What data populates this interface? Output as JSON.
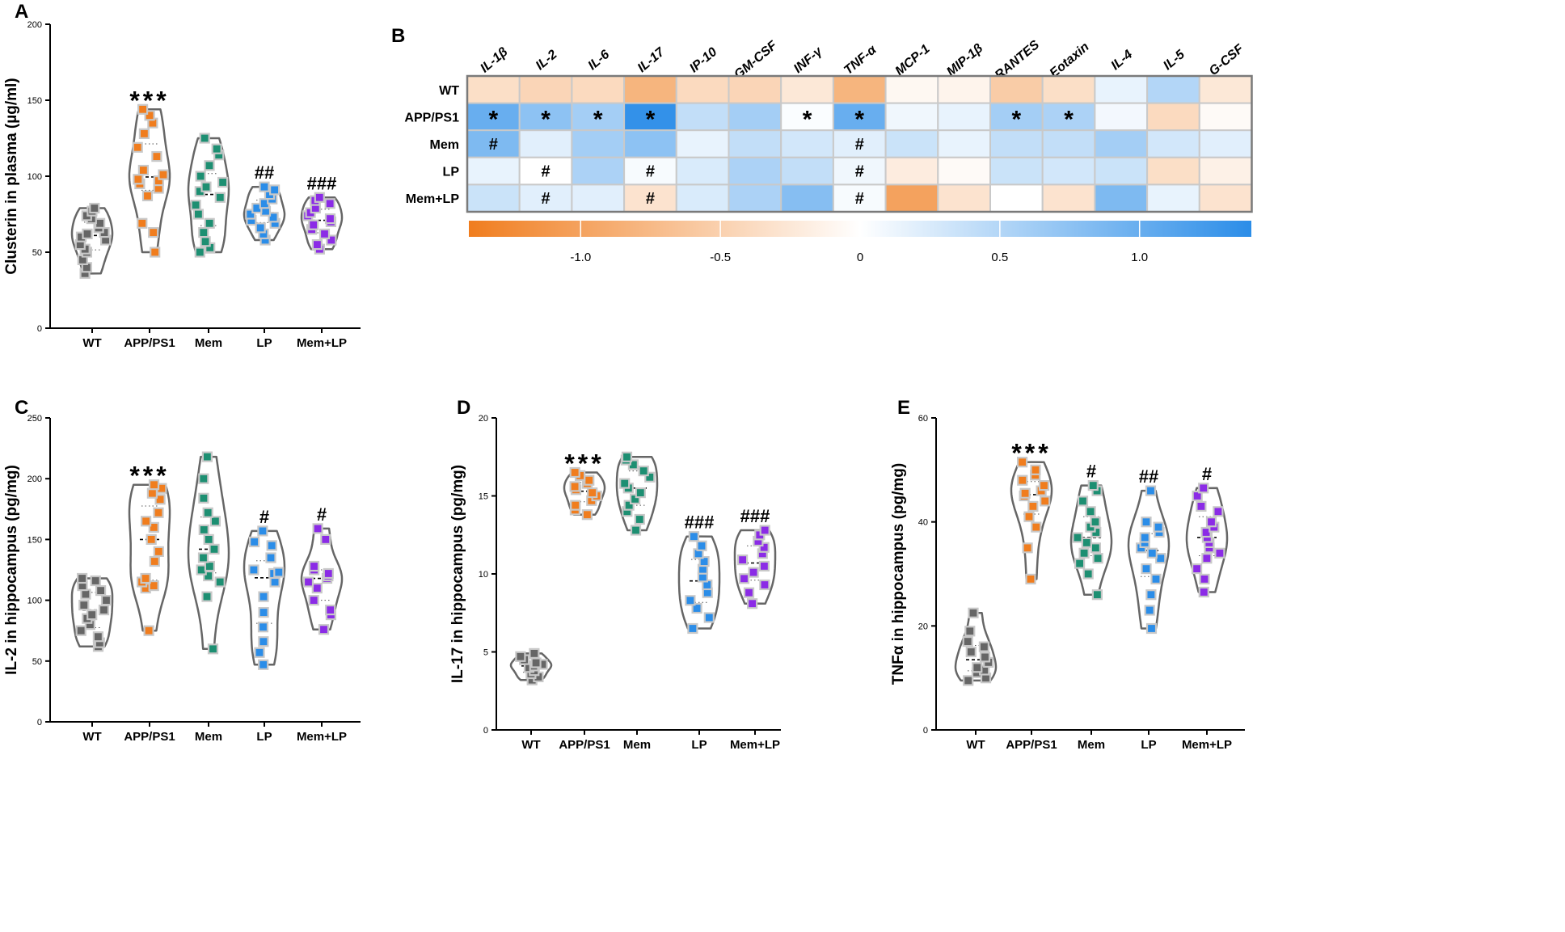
{
  "chart_data": [
    {
      "panel": "A",
      "type": "scatter",
      "ylabel": "Clusterin in plasma (µg/ml)",
      "ylim": [
        0,
        200
      ],
      "yticks": [
        0,
        50,
        100,
        150,
        200
      ],
      "categories": [
        "WT",
        "APP/PS1",
        "Mem",
        "LP",
        "Mem+LP"
      ],
      "annotations": [
        "",
        "***",
        "",
        "##",
        "###"
      ],
      "series": [
        {
          "category": "WT",
          "color": "#666666",
          "values": [
            36,
            40,
            45,
            50,
            52,
            55,
            58,
            60,
            62,
            63,
            66,
            69,
            72,
            74,
            77,
            79
          ]
        },
        {
          "category": "APP/PS1",
          "color": "#f07d1e",
          "values": [
            50,
            63,
            69,
            87,
            92,
            95,
            97,
            98,
            101,
            104,
            113,
            119,
            128,
            135,
            140,
            144
          ]
        },
        {
          "category": "Mem",
          "color": "#1d8f72",
          "values": [
            50,
            53,
            57,
            63,
            69,
            75,
            81,
            86,
            90,
            93,
            96,
            100,
            107,
            114,
            118,
            125
          ]
        },
        {
          "category": "LP",
          "color": "#2b8de8",
          "values": [
            58,
            62,
            66,
            69,
            71,
            73,
            75,
            77,
            79,
            82,
            85,
            88,
            91,
            93
          ]
        },
        {
          "category": "Mem+LP",
          "color": "#8b2be6",
          "values": [
            52,
            55,
            58,
            62,
            65,
            68,
            70,
            72,
            74,
            76,
            79,
            82,
            84,
            86
          ]
        }
      ]
    },
    {
      "panel": "B",
      "type": "heatmap",
      "columns": [
        "IL-1β",
        "IL-2",
        "IL-6",
        "IL-17",
        "IP-10",
        "GM-CSF",
        "INF-γ",
        "TNF-α",
        "MCP-1",
        "MIP-1β",
        "RANTES",
        "Eotaxin",
        "IL-4",
        "IL-5",
        "G-CSF"
      ],
      "rows": [
        "WT",
        "APP/PS1",
        "Mem",
        "LP",
        "Mem+LP"
      ],
      "values": [
        [
          -0.35,
          -0.45,
          -0.4,
          -0.8,
          -0.4,
          -0.45,
          -0.25,
          -0.8,
          -0.08,
          -0.12,
          -0.55,
          -0.35,
          0.15,
          0.5,
          -0.25
        ],
        [
          1.0,
          0.75,
          0.6,
          1.35,
          0.4,
          0.6,
          0.03,
          1.0,
          0.1,
          0.15,
          0.6,
          0.55,
          0.08,
          -0.4,
          -0.05
        ],
        [
          0.85,
          0.2,
          0.6,
          0.75,
          0.15,
          0.4,
          0.3,
          0.2,
          0.35,
          0.15,
          0.4,
          0.4,
          0.6,
          0.3,
          0.2
        ],
        [
          0.15,
          0.0,
          0.55,
          0.05,
          0.25,
          0.55,
          0.4,
          0.1,
          -0.2,
          -0.05,
          0.35,
          0.3,
          0.35,
          -0.35,
          -0.15
        ],
        [
          0.35,
          0.2,
          0.2,
          -0.3,
          0.25,
          0.55,
          0.8,
          0.05,
          -1.0,
          -0.3,
          0.0,
          -0.3,
          0.85,
          0.15,
          -0.3
        ]
      ],
      "markers": [
        [
          "",
          "",
          "",
          "",
          "",
          "",
          "",
          "",
          "",
          "",
          "",
          "",
          "",
          "",
          ""
        ],
        [
          "*",
          "*",
          "*",
          "*",
          "",
          "",
          "*",
          "*",
          "",
          "",
          "*",
          "*",
          "",
          "",
          ""
        ],
        [
          "#",
          "",
          "",
          "",
          "",
          "",
          "",
          "#",
          "",
          "",
          "",
          "",
          "",
          "",
          ""
        ],
        [
          "",
          "#",
          "",
          "#",
          "",
          "",
          "",
          "#",
          "",
          "",
          "",
          "",
          "",
          "",
          ""
        ],
        [
          "",
          "#",
          "",
          "#",
          "",
          "",
          "",
          "#",
          "",
          "",
          "",
          "",
          "",
          "",
          ""
        ]
      ],
      "colorbar": {
        "min": -1.4,
        "max": 1.4,
        "ticks": [
          -1.0,
          -0.5,
          0,
          0.5,
          1.0
        ],
        "tick_labels": [
          "-1.0",
          "-0.5",
          "0",
          "0.5",
          "1.0"
        ],
        "neg_color": "#f07d1e",
        "pos_color": "#2b8de8"
      }
    },
    {
      "panel": "C",
      "type": "scatter",
      "ylabel": "IL-2 in hippocampus (pg/mg)",
      "ylim": [
        0,
        250
      ],
      "yticks": [
        0,
        50,
        100,
        150,
        200,
        250
      ],
      "categories": [
        "WT",
        "APP/PS1",
        "Mem",
        "LP",
        "Mem+LP"
      ],
      "annotations": [
        "",
        "***",
        "",
        "#",
        "#"
      ],
      "series": [
        {
          "category": "WT",
          "color": "#666666",
          "values": [
            62,
            65,
            70,
            75,
            80,
            85,
            88,
            92,
            96,
            100,
            105,
            108,
            112,
            116,
            118
          ]
        },
        {
          "category": "APP/PS1",
          "color": "#f07d1e",
          "values": [
            75,
            110,
            112,
            115,
            118,
            132,
            140,
            150,
            160,
            165,
            172,
            183,
            188,
            192,
            195
          ]
        },
        {
          "category": "Mem",
          "color": "#1d8f72",
          "values": [
            60,
            103,
            115,
            120,
            125,
            128,
            135,
            142,
            150,
            158,
            165,
            172,
            184,
            200,
            218
          ]
        },
        {
          "category": "LP",
          "color": "#2b8de8",
          "values": [
            47,
            57,
            66,
            78,
            90,
            103,
            115,
            122,
            123,
            125,
            135,
            145,
            148,
            157
          ]
        },
        {
          "category": "Mem+LP",
          "color": "#8b2be6",
          "values": [
            76,
            88,
            92,
            100,
            110,
            115,
            118,
            120,
            122,
            125,
            128,
            150,
            159
          ]
        }
      ]
    },
    {
      "panel": "D",
      "type": "scatter",
      "ylabel": "IL-17 in hippocampus (pg/mg)",
      "ylim": [
        0,
        20
      ],
      "yticks": [
        0,
        5,
        10,
        15,
        20
      ],
      "categories": [
        "WT",
        "APP/PS1",
        "Mem",
        "LP",
        "Mem+LP"
      ],
      "annotations": [
        "",
        "***",
        "",
        "###",
        "###"
      ],
      "series": [
        {
          "category": "WT",
          "color": "#666666",
          "values": [
            3.2,
            3.4,
            3.6,
            3.8,
            4.0,
            4.1,
            4.2,
            4.3,
            4.5,
            4.7,
            4.9
          ]
        },
        {
          "category": "APP/PS1",
          "color": "#f07d1e",
          "values": [
            13.8,
            14.1,
            14.4,
            14.7,
            15.0,
            15.2,
            15.4,
            15.6,
            15.8,
            16.0,
            16.3,
            16.5
          ]
        },
        {
          "category": "Mem",
          "color": "#1d8f72",
          "values": [
            12.8,
            13.5,
            14.0,
            14.4,
            14.8,
            15.2,
            15.5,
            15.8,
            16.2,
            16.6,
            17.0,
            17.3,
            17.5
          ]
        },
        {
          "category": "LP",
          "color": "#2b8de8",
          "values": [
            6.5,
            7.2,
            7.8,
            8.3,
            8.8,
            9.3,
            9.8,
            10.3,
            10.8,
            11.3,
            11.8,
            12.4
          ]
        },
        {
          "category": "Mem+LP",
          "color": "#8b2be6",
          "values": [
            8.1,
            8.8,
            9.3,
            9.7,
            10.1,
            10.5,
            10.9,
            11.3,
            11.7,
            12.1,
            12.5,
            12.8
          ]
        }
      ]
    },
    {
      "panel": "E",
      "type": "scatter",
      "ylabel": "TNFα in hippocampus (pg/mg)",
      "ylim": [
        0,
        60
      ],
      "yticks": [
        0,
        20,
        40,
        60
      ],
      "categories": [
        "WT",
        "APP/PS1",
        "Mem",
        "LP",
        "Mem+LP"
      ],
      "annotations": [
        "",
        "***",
        "#",
        "##",
        "#"
      ],
      "series": [
        {
          "category": "WT",
          "color": "#666666",
          "values": [
            9.5,
            10,
            11,
            11.5,
            12,
            13,
            14,
            15,
            16,
            17,
            19,
            22.5
          ]
        },
        {
          "category": "APP/PS1",
          "color": "#f07d1e",
          "values": [
            29,
            35,
            39,
            41,
            43,
            44,
            45,
            45.5,
            46,
            47,
            48,
            49,
            50,
            51.5
          ]
        },
        {
          "category": "Mem",
          "color": "#1d8f72",
          "values": [
            26,
            30,
            32,
            33,
            34,
            35,
            36,
            37,
            38,
            39,
            40,
            42,
            44,
            46,
            47
          ]
        },
        {
          "category": "LP",
          "color": "#2b8de8",
          "values": [
            19.5,
            23,
            26,
            29,
            31,
            33,
            34,
            35,
            36,
            37,
            38,
            39,
            40,
            46
          ]
        },
        {
          "category": "Mem+LP",
          "color": "#8b2be6",
          "values": [
            26.5,
            29,
            31,
            33,
            34,
            35,
            36,
            37,
            38,
            39,
            40,
            42,
            43,
            45,
            46.5
          ]
        }
      ]
    }
  ]
}
